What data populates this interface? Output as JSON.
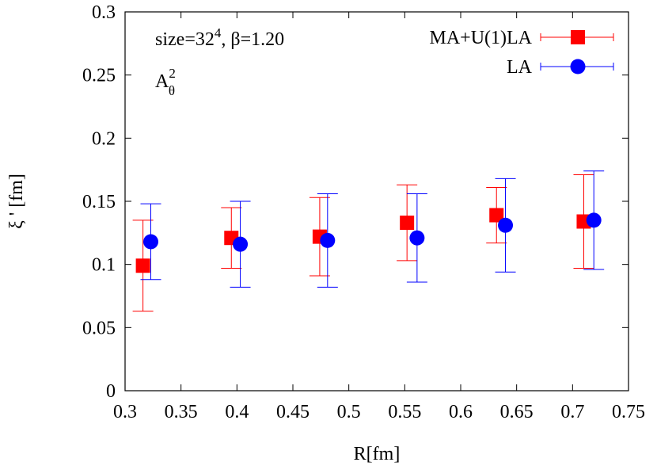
{
  "chart_data": {
    "type": "scatter",
    "title": "",
    "xlabel": "R[fm]",
    "ylabel": "ξ ' [fm]",
    "xlim": [
      0.3,
      0.75
    ],
    "ylim": [
      0,
      0.3
    ],
    "xticks": [
      "0.3",
      "0.35",
      "0.4",
      "0.45",
      "0.5",
      "0.55",
      "0.6",
      "0.65",
      "0.7",
      "0.75"
    ],
    "yticks": [
      "0",
      "0.05",
      "0.1",
      "0.15",
      "0.2",
      "0.25",
      "0.3"
    ],
    "grid": false,
    "legend_position": "top-right",
    "annotation": {
      "size_prefix": "size=32",
      "size_exponent": "4",
      "beta": ",  β=1.20",
      "quantity": "A",
      "quantity_sup": "2",
      "quantity_sub": "θ"
    },
    "series": [
      {
        "name": "MA+U(1)LA",
        "color": "#ff0000",
        "marker": "square",
        "points": [
          {
            "x": 0.316,
            "y": 0.099,
            "err": 0.036
          },
          {
            "x": 0.395,
            "y": 0.121,
            "err": 0.024
          },
          {
            "x": 0.474,
            "y": 0.122,
            "err": 0.031
          },
          {
            "x": 0.552,
            "y": 0.133,
            "err": 0.03
          },
          {
            "x": 0.632,
            "y": 0.139,
            "err": 0.022
          },
          {
            "x": 0.71,
            "y": 0.134,
            "err": 0.037
          }
        ]
      },
      {
        "name": "LA",
        "color": "#0000ff",
        "marker": "circle",
        "points": [
          {
            "x": 0.323,
            "y": 0.118,
            "err": 0.03
          },
          {
            "x": 0.403,
            "y": 0.116,
            "err": 0.034
          },
          {
            "x": 0.481,
            "y": 0.119,
            "err": 0.037
          },
          {
            "x": 0.561,
            "y": 0.121,
            "err": 0.035
          },
          {
            "x": 0.64,
            "y": 0.131,
            "err": 0.037
          },
          {
            "x": 0.719,
            "y": 0.135,
            "err": 0.039
          }
        ]
      }
    ]
  }
}
